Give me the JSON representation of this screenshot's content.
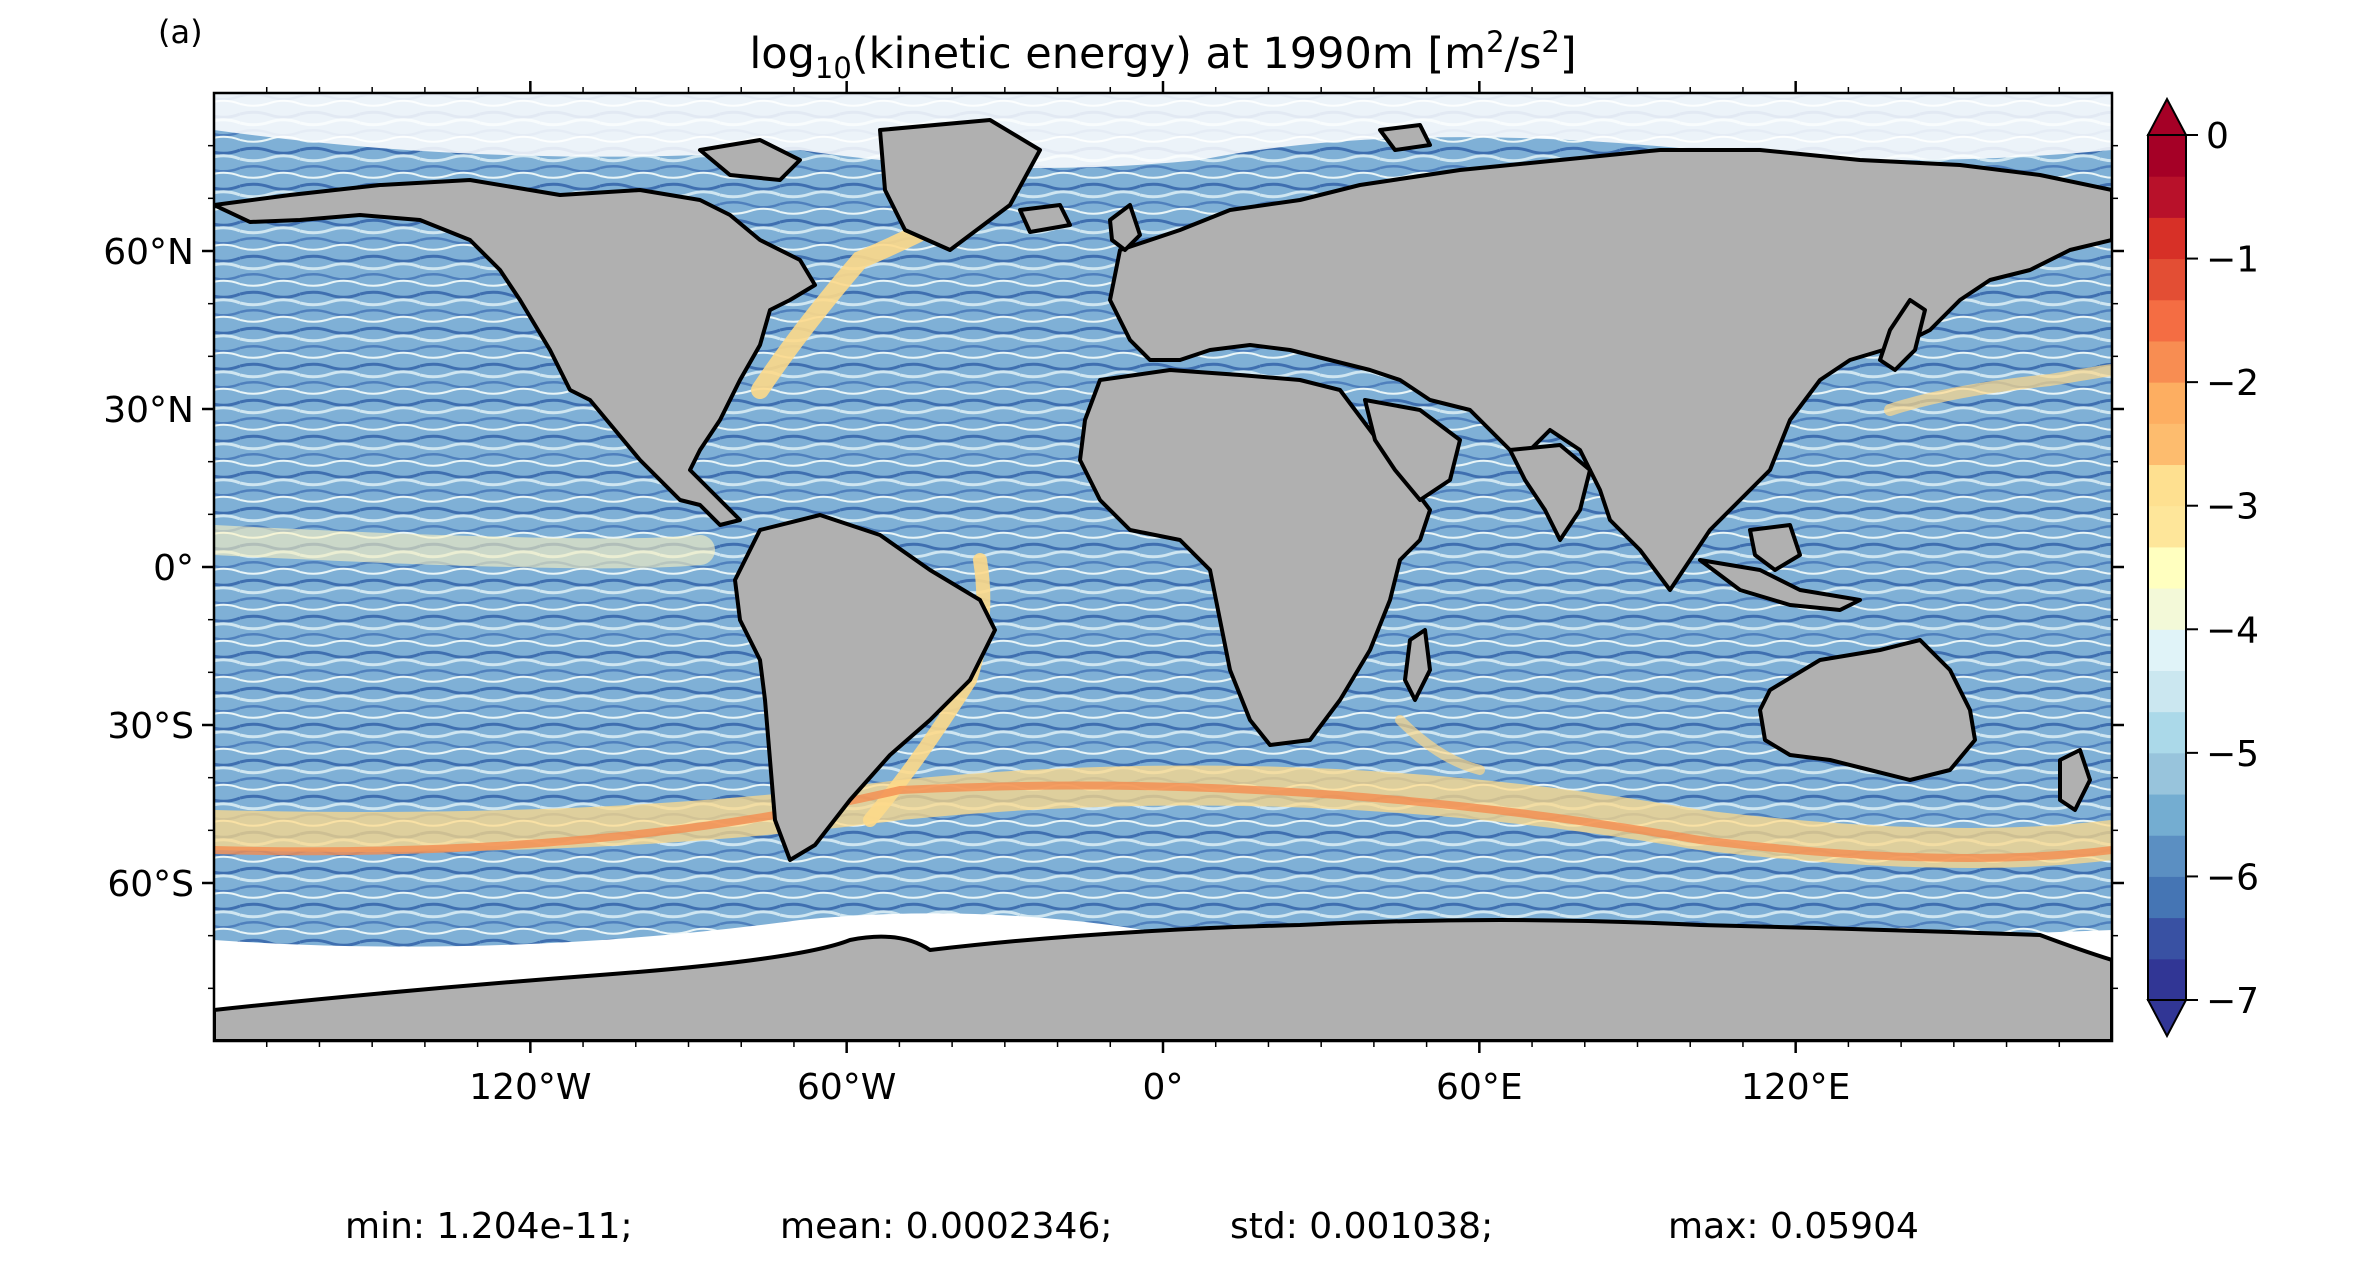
{
  "panel_label": "(a)",
  "title": {
    "prefix": "log",
    "sub": "10",
    "middle": "(kinetic energy) at 1990m [m",
    "sup1": "2",
    "mid2": "/s",
    "sup2": "2",
    "suffix": "]"
  },
  "lat_ticks": [
    "60°N",
    "30°N",
    "0°",
    "30°S",
    "60°S"
  ],
  "lon_ticks": [
    "120°W",
    "60°W",
    "0°",
    "60°E",
    "120°E"
  ],
  "colorbar": {
    "ticks": [
      "0",
      "−1",
      "−2",
      "−3",
      "−4",
      "−5",
      "−6",
      "−7"
    ],
    "range": [
      -7,
      0
    ],
    "extend": "both",
    "colors": [
      "#313695",
      "#3951a3",
      "#4575b4",
      "#5b8fc2",
      "#74add1",
      "#98c4dc",
      "#abd9e9",
      "#cbe7f0",
      "#e0f3f8",
      "#f3f9d8",
      "#ffffbf",
      "#fee69a",
      "#fee090",
      "#fdbc6e",
      "#fdae61",
      "#f88d52",
      "#f46d43",
      "#e34e34",
      "#d73027",
      "#b8112a",
      "#a50026"
    ]
  },
  "stats": {
    "min": "min: 1.204e-11;",
    "mean": "mean: 0.0002346;",
    "std": "std: 0.001038;",
    "max": "max: 0.05904"
  },
  "map_colors": {
    "land": "#b0b0b0",
    "coast": "#000000",
    "ocean_low": "#4a78b8",
    "ocean_mid": "#a9d2e8",
    "ocean_high": "#fdd98a",
    "ocean_peak": "#f48c50"
  }
}
